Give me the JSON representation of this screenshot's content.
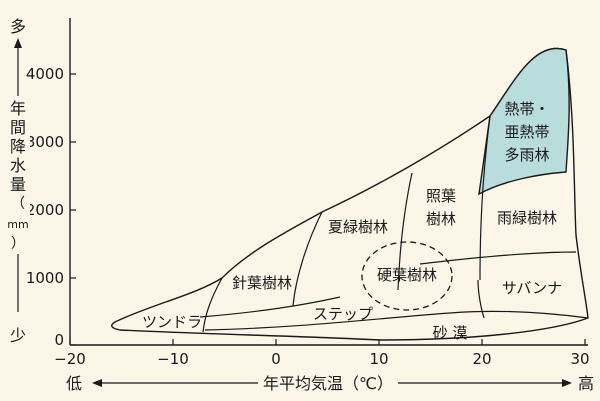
{
  "diagram": {
    "y_axis": {
      "label_chars": [
        "年",
        "間",
        "降",
        "水",
        "量",
        "（",
        "mm",
        "）"
      ],
      "top_word": "多",
      "bottom_word": "少",
      "ticks": [
        "4000",
        "3000",
        "2000",
        "1000",
        "0"
      ]
    },
    "x_axis": {
      "label": "年平均気温（℃）",
      "left_word": "低",
      "right_word": "高",
      "ticks": [
        "−20",
        "−10",
        "0",
        "10",
        "20",
        "30"
      ]
    },
    "biomes": {
      "tundra": "ツンドラ",
      "taiga": "針葉樹林",
      "summergreen": "夏緑樹林",
      "laurel_1": "照葉",
      "laurel_2": "樹林",
      "sclerophyll": "硬葉樹林",
      "steppe": "ステップ",
      "desert": "砂 漠",
      "raingreen": "雨緑樹林",
      "savanna": "サバンナ",
      "rainforest_1": "熱帯・",
      "rainforest_2": "亜熱帯",
      "rainforest_3": "多雨林"
    },
    "colors": {
      "background": "#fbf6e8",
      "rainforest_fill": "#b9dcdc",
      "line": "#1a1a1a"
    }
  }
}
